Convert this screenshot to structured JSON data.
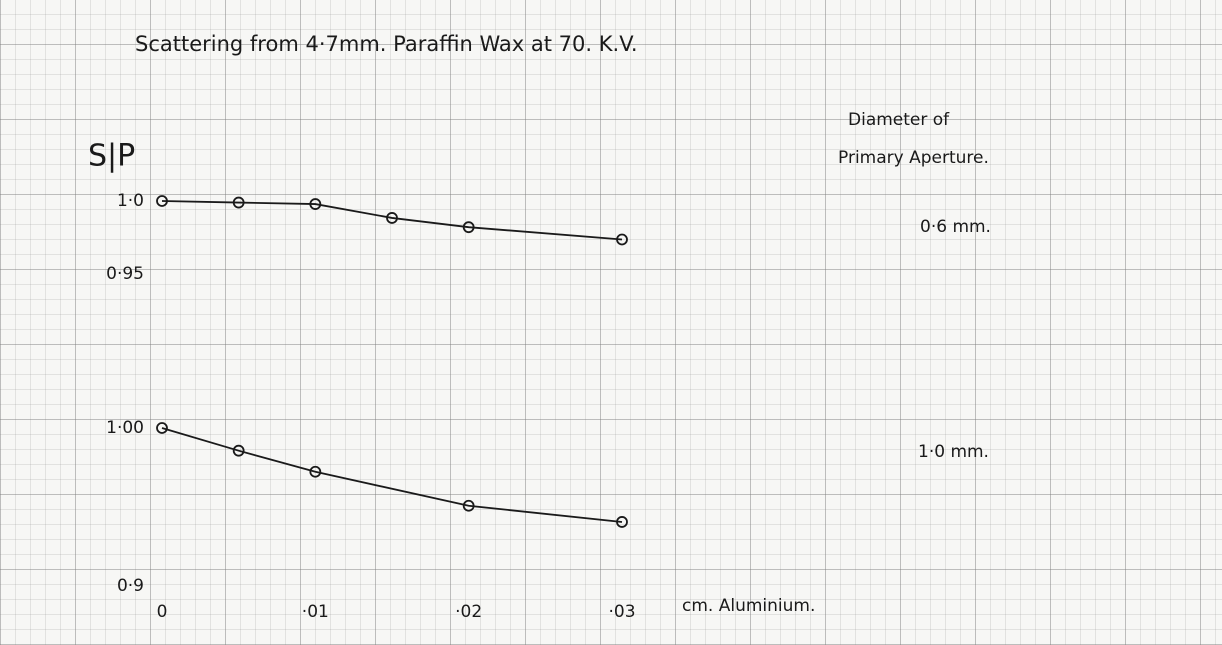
{
  "chart_data": [
    {
      "type": "line",
      "title": "Scattering from 4·7mm. Paraffin Wax at 70. K.V.",
      "ylabel": "S|P",
      "legend_title": [
        "Diameter of",
        "Primary Aperture."
      ],
      "xlim": [
        0,
        0.03
      ],
      "ylim": [
        0.95,
        1.0
      ],
      "yticks": [
        {
          "value": 1.0,
          "label": "1·0"
        },
        {
          "value": 0.95,
          "label": "0·95"
        }
      ],
      "series": [
        {
          "name": "0·6 mm.",
          "color": "#1a1a1a",
          "x": [
            0,
            0.005,
            0.01,
            0.015,
            0.02,
            0.03
          ],
          "values": [
            1.0,
            0.999,
            0.998,
            0.989,
            0.983,
            0.975
          ]
        }
      ]
    },
    {
      "type": "line",
      "xlabel": "cm. Aluminium.",
      "xlim": [
        0,
        0.03
      ],
      "xticks": [
        0,
        {
          "value": 0.01,
          "label": "·01"
        },
        {
          "value": 0.02,
          "label": "·02"
        },
        {
          "value": 0.03,
          "label": "·03"
        }
      ],
      "ylim": [
        0.9,
        1.0
      ],
      "yticks": [
        {
          "value": 1.0,
          "label": "1·00"
        },
        {
          "value": 0.9,
          "label": "0·9"
        }
      ],
      "series": [
        {
          "name": "1·0 mm.",
          "color": "#1a1a1a",
          "x": [
            0,
            0.005,
            0.01,
            0.02,
            0.03
          ],
          "values": [
            1.0,
            0.986,
            0.973,
            0.952,
            0.942
          ]
        }
      ]
    }
  ]
}
